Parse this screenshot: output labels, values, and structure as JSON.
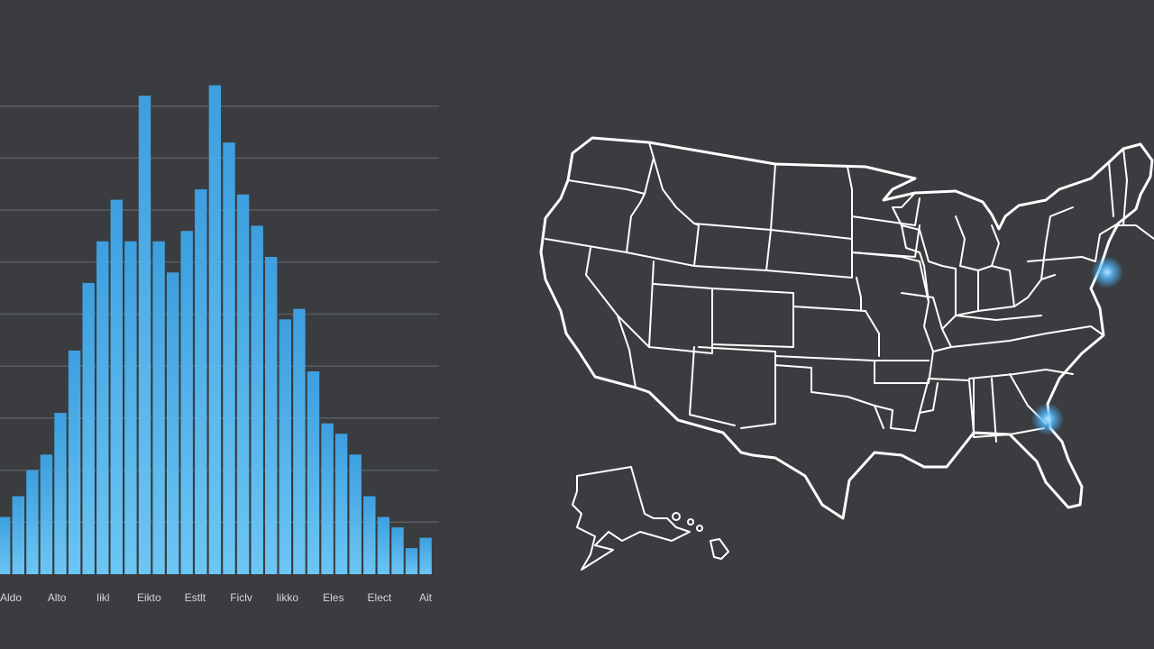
{
  "chart_data": {
    "type": "bar",
    "values": [
      11,
      15,
      20,
      23,
      31,
      43,
      56,
      64,
      72,
      64,
      92,
      64,
      58,
      66,
      74,
      94,
      83,
      73,
      67,
      61,
      49,
      51,
      39,
      29,
      27,
      23,
      15,
      11,
      9,
      5,
      7
    ],
    "tick_labels": [
      "Aldo",
      "Alto",
      "Iikl",
      "Eikto",
      "Estlt",
      "Ficlv",
      "Iikko",
      "Eles",
      "Elect",
      "Ait"
    ],
    "ylim": [
      0,
      100
    ],
    "grid": true,
    "colors": {
      "bar_top": "#3d9fe0",
      "bar_bottom": "#6cc6f3"
    }
  },
  "map": {
    "highlight_color": "#4db8ff",
    "outline_color": "#ffffff"
  }
}
